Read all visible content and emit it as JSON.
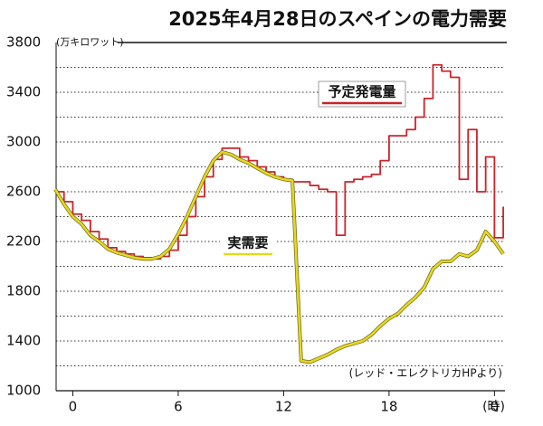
{
  "chart_data": {
    "type": "line",
    "title": "2025年4月28日のスペインの電力需要",
    "y_label": "(万キロワット)",
    "x_label": "(時)",
    "source": "(レッド・エレクトリカHPより)",
    "x": [
      -1,
      -0.5,
      0,
      0.5,
      1,
      1.5,
      2,
      2.5,
      3,
      3.5,
      4,
      4.5,
      5,
      5.5,
      6,
      6.5,
      7,
      7.5,
      8,
      8.5,
      9,
      9.5,
      10,
      10.5,
      11,
      11.5,
      12,
      12.5,
      13,
      13.5,
      14,
      14.5,
      15,
      15.5,
      16,
      16.5,
      17,
      17.5,
      18,
      18.5,
      19,
      19.5,
      20,
      20.5,
      21,
      21.5,
      22,
      22.5,
      23,
      23.5,
      24,
      24.5
    ],
    "series": [
      {
        "name": "予定発電量",
        "color": "#c8242b",
        "step": true,
        "values": [
          2600,
          2520,
          2420,
          2370,
          2280,
          2220,
          2150,
          2120,
          2100,
          2080,
          2070,
          2060,
          2080,
          2130,
          2250,
          2400,
          2560,
          2720,
          2860,
          2950,
          2950,
          2880,
          2850,
          2800,
          2760,
          2720,
          2700,
          2680,
          2680,
          2650,
          2620,
          2600,
          2250,
          2680,
          2700,
          2720,
          2740,
          2850,
          3050,
          3050,
          3100,
          3200,
          3350,
          3620,
          3570,
          3520,
          2700,
          3100,
          2600,
          2880,
          2230,
          2480
        ]
      },
      {
        "name": "実需要",
        "color": "#e6d81e",
        "step": false,
        "values": [
          2620,
          2500,
          2400,
          2340,
          2250,
          2200,
          2140,
          2110,
          2090,
          2070,
          2060,
          2060,
          2080,
          2140,
          2260,
          2400,
          2560,
          2720,
          2850,
          2920,
          2900,
          2860,
          2830,
          2790,
          2750,
          2720,
          2700,
          2690,
          1240,
          1230,
          1260,
          1290,
          1330,
          1360,
          1380,
          1400,
          1450,
          1520,
          1580,
          1620,
          1690,
          1750,
          1830,
          1980,
          2040,
          2040,
          2100,
          2080,
          2130,
          2280,
          2200,
          2100
        ]
      }
    ],
    "xlim": [
      -0.95,
      24.6
    ],
    "xticks": [
      0,
      6,
      12,
      18,
      {
        "value": 24,
        "label": "0"
      }
    ],
    "ylim": [
      1000,
      3800
    ],
    "yticks": [
      1000,
      1400,
      1800,
      2200,
      2600,
      3000,
      3400,
      3800
    ],
    "minor_yticks": [
      1200,
      1600,
      2000,
      2400,
      2800,
      3200,
      3600
    ],
    "grid": true
  }
}
